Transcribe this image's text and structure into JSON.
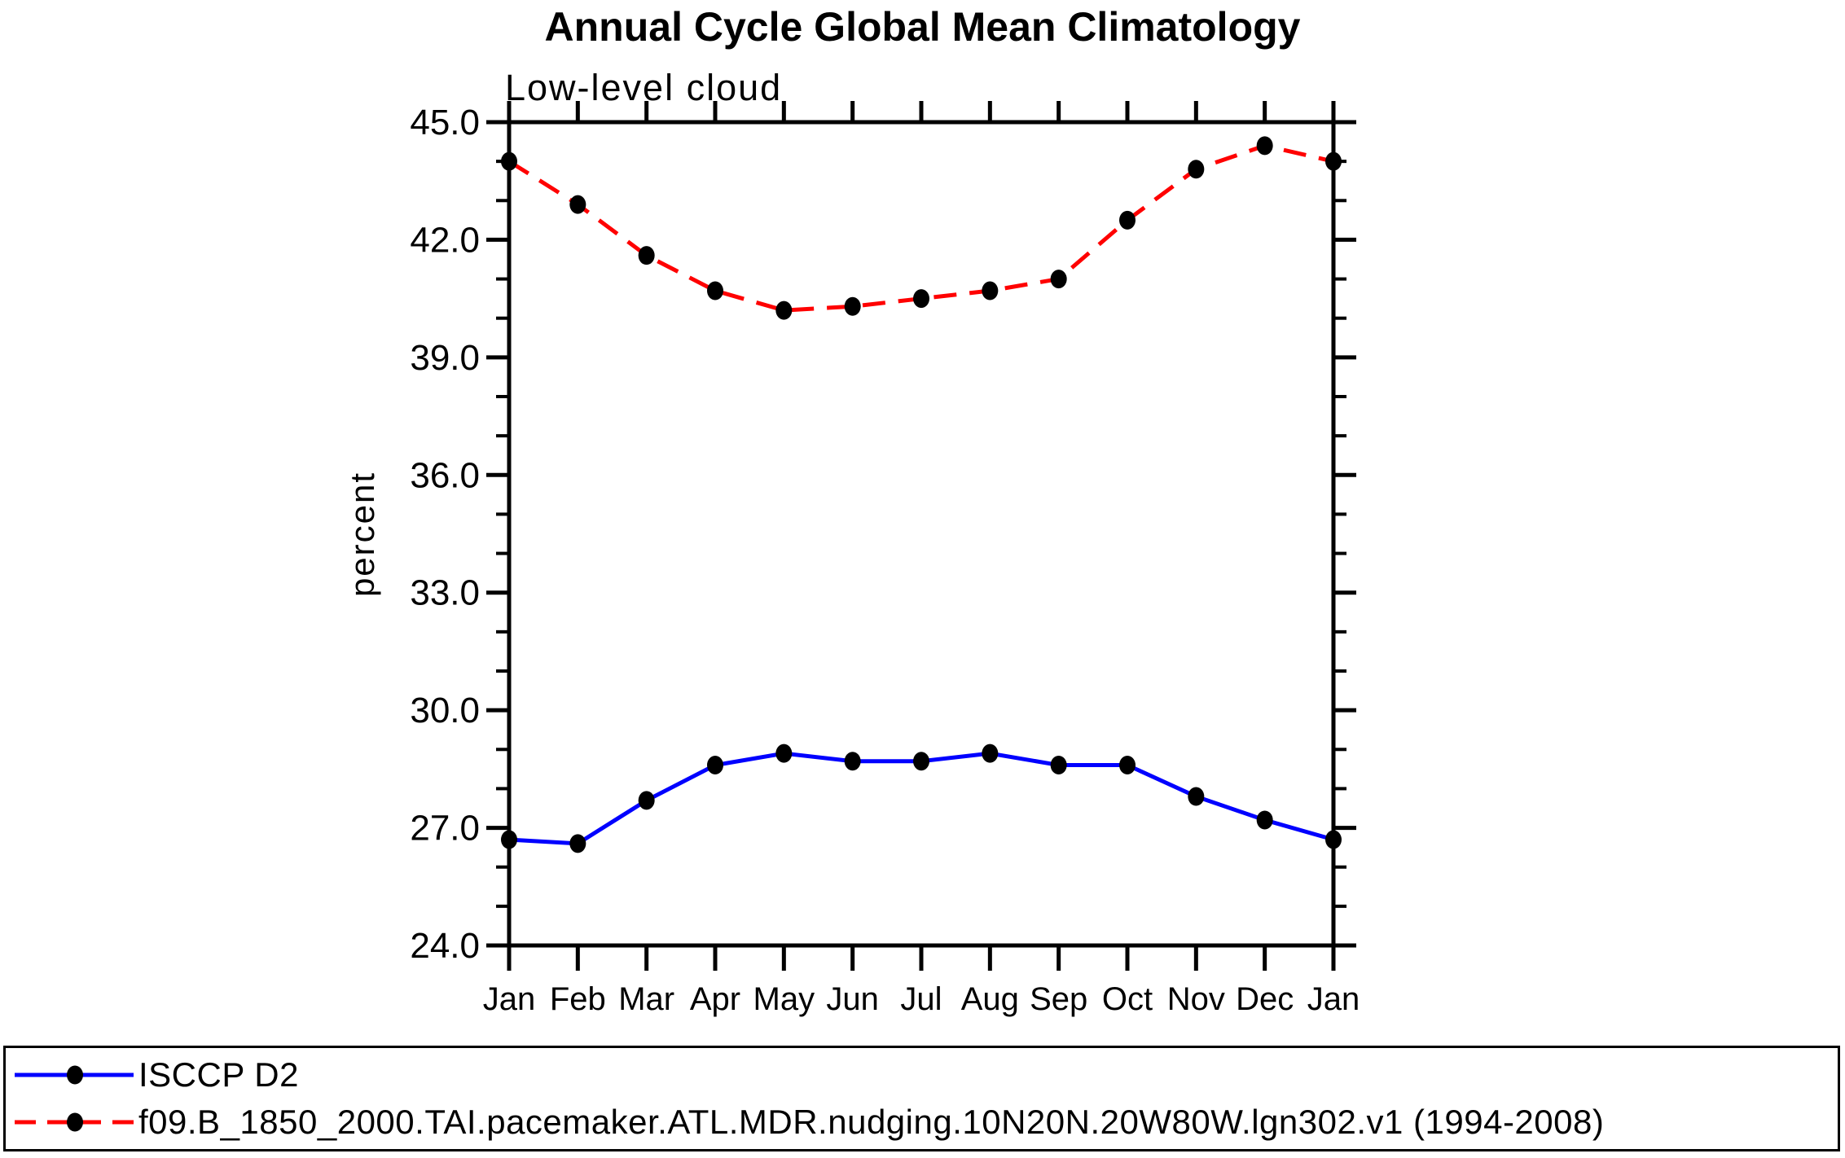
{
  "header": {
    "title": "Annual Cycle Global Mean Climatology"
  },
  "chart_data": {
    "type": "line",
    "title": "Annual Cycle Global Mean Climatology",
    "subtitle": "Low-level cloud",
    "ylabel": "percent",
    "xlabel": "",
    "categories": [
      "Jan",
      "Feb",
      "Mar",
      "Apr",
      "May",
      "Jun",
      "Jul",
      "Aug",
      "Sep",
      "Oct",
      "Nov",
      "Dec",
      "Jan"
    ],
    "series": [
      {
        "name": "ISCCP D2",
        "color": "#0000ff",
        "line_style": "solid",
        "marker": "filled-circle",
        "marker_color": "#000000",
        "values": [
          26.7,
          26.6,
          27.7,
          28.6,
          28.9,
          28.7,
          28.7,
          28.9,
          28.6,
          28.6,
          27.8,
          27.2,
          26.7
        ]
      },
      {
        "name": "f09.B_1850_2000.TAI.pacemaker.ATL.MDR.nudging.10N20N.20W80W.lgn302.v1 (1994-2008)",
        "color": "#ff0000",
        "line_style": "dashed",
        "marker": "filled-circle",
        "marker_color": "#000000",
        "values": [
          44.0,
          42.9,
          41.6,
          40.7,
          40.2,
          40.3,
          40.5,
          40.7,
          41.0,
          42.5,
          43.8,
          44.4,
          44.0
        ]
      }
    ],
    "ylim": [
      24.0,
      45.0
    ],
    "y_major_step": 3.0,
    "y_minor_step": 1.0,
    "y_tick_labels": [
      "24.0",
      "27.0",
      "30.0",
      "33.0",
      "36.0",
      "39.0",
      "42.0",
      "45.0"
    ],
    "grid": false,
    "legend_position": "bottom-box",
    "axis_color": "#000000",
    "background_color": "#ffffff"
  }
}
